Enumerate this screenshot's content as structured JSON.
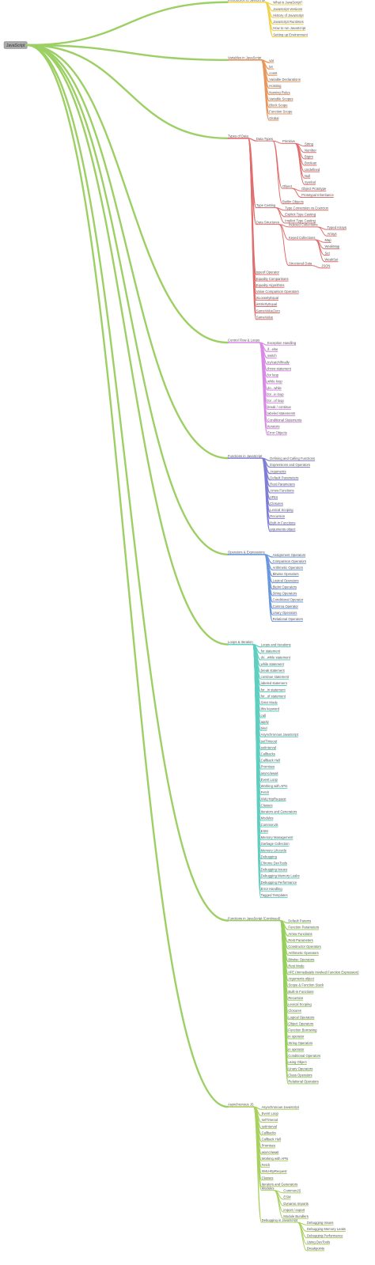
{
  "mindmap": {
    "label": "JavaScript",
    "children": [
      {
        "label": "Introduction to JavaScript",
        "color": "#f0d34a",
        "children": [
          {
            "label": "What is JavaScript?"
          },
          {
            "label": "JavaScript Versions"
          },
          {
            "label": "History of JavaScript"
          },
          {
            "label": "JavaScript Runtimes"
          },
          {
            "label": "How to run JavaScript"
          },
          {
            "label": "Setting up Environment"
          }
        ]
      },
      {
        "label": "Variables in JavaScript",
        "color": "#e9965c",
        "children": [
          {
            "label": "var"
          },
          {
            "label": "let"
          },
          {
            "label": "const"
          },
          {
            "label": "Variable Declarations"
          },
          {
            "label": "Hoisting"
          },
          {
            "label": "Naming Rules"
          },
          {
            "label": "Variable Scopes"
          },
          {
            "label": "Block Scope"
          },
          {
            "label": "Function Scope"
          },
          {
            "label": "Global"
          }
        ]
      },
      {
        "label": "Types of Data",
        "color": "#e06e6e",
        "children": [
          {
            "label": "Data Types",
            "children": [
              {
                "label": "Primitive",
                "children": [
                  {
                    "label": "String"
                  },
                  {
                    "label": "Number"
                  },
                  {
                    "label": "BigInt"
                  },
                  {
                    "label": "Boolean"
                  },
                  {
                    "label": "Undefined"
                  },
                  {
                    "label": "Null"
                  },
                  {
                    "label": "Symbol"
                  }
                ]
              },
              {
                "label": "Object",
                "children": [
                  {
                    "label": "Object Prototype"
                  },
                  {
                    "label": "Prototypal Inheritance"
                  }
                ]
              },
              {
                "label": "Builtin Objects"
              }
            ]
          },
          {
            "label": "Type Casting",
            "children": [
              {
                "label": "Type Conversion vs Coercion"
              },
              {
                "label": "Explicit Type Casting"
              },
              {
                "label": "Implicit Type Casting"
              }
            ]
          },
          {
            "label": "Data Structures",
            "children": [
              {
                "label": "Indexed Collections",
                "children": [
                  {
                    "label": "Typed Arrays"
                  },
                  {
                    "label": "Arrays"
                  }
                ]
              },
              {
                "label": "Keyed Collections",
                "children": [
                  {
                    "label": "Map"
                  },
                  {
                    "label": "WeakMap"
                  },
                  {
                    "label": "Set"
                  },
                  {
                    "label": "WeakSet"
                  }
                ]
              },
              {
                "label": "Structured Data",
                "children": [
                  {
                    "label": "JSON"
                  }
                ]
              }
            ]
          },
          {
            "label": "typeof Operator"
          },
          {
            "label": "Equality Comparisons"
          },
          {
            "label": "Equality Algorithms"
          },
          {
            "label": "Value Comparison Operators"
          },
          {
            "label": "isLooselyEqual"
          },
          {
            "label": "isStrictlyEqual"
          },
          {
            "label": "SameValueZero"
          },
          {
            "label": "SameValue"
          }
        ]
      },
      {
        "label": "Control Flow & Loops",
        "color": "#d98ae6",
        "children": [
          {
            "label": "Exception Handling"
          },
          {
            "label": "if...else"
          },
          {
            "label": "switch"
          },
          {
            "label": "try/catch/finally"
          },
          {
            "label": "throw statement"
          },
          {
            "label": "for loop"
          },
          {
            "label": "while loop"
          },
          {
            "label": "do...while"
          },
          {
            "label": "for...in loop"
          },
          {
            "label": "for...of loop"
          },
          {
            "label": "break / continue"
          },
          {
            "label": "labeled statements"
          },
          {
            "label": "Conditional Statements"
          },
          {
            "label": "Iterators"
          },
          {
            "label": "Error Objects"
          }
        ]
      },
      {
        "label": "Functions in JavaScript",
        "color": "#7f7ed6",
        "children": [
          {
            "label": "Defining and Calling Functions"
          },
          {
            "label": "Expressions and Operators"
          },
          {
            "label": "Arguments"
          },
          {
            "label": "Default Parameters"
          },
          {
            "label": "Rest Parameters"
          },
          {
            "label": "Arrow Functions"
          },
          {
            "label": "IIFEs"
          },
          {
            "label": "Closures"
          },
          {
            "label": "Lexical Scoping"
          },
          {
            "label": "Recursion"
          },
          {
            "label": "Built-in Functions"
          },
          {
            "label": "arguments object"
          }
        ]
      },
      {
        "label": "Operators & Expressions",
        "color": "#6b98de",
        "children": [
          {
            "label": "Assignment Operators"
          },
          {
            "label": "Comparison Operators"
          },
          {
            "label": "Arithmetic Operators"
          },
          {
            "label": "Bitwise Operators"
          },
          {
            "label": "Logical Operators"
          },
          {
            "label": "BigInt Operators"
          },
          {
            "label": "String Operators"
          },
          {
            "label": "Conditional Operator"
          },
          {
            "label": "Comma Operator"
          },
          {
            "label": "Unary Operators"
          },
          {
            "label": "Relational Operators"
          }
        ]
      },
      {
        "label": "Loops & Iteration",
        "color": "#5fcfc0",
        "children": [
          {
            "label": "Loops and Iterations"
          },
          {
            "label": "for statement"
          },
          {
            "label": "do...while statement"
          },
          {
            "label": "while statement"
          },
          {
            "label": "break statement"
          },
          {
            "label": "continue statement"
          },
          {
            "label": "labeled statement"
          },
          {
            "label": "for...in statement"
          },
          {
            "label": "for...of statement"
          },
          {
            "label": "Strict Mode"
          },
          {
            "label": "this keyword"
          },
          {
            "label": "call"
          },
          {
            "label": "apply"
          },
          {
            "label": "bind"
          },
          {
            "label": "Asynchronous JavaScript"
          },
          {
            "label": "setTimeout"
          },
          {
            "label": "setInterval"
          },
          {
            "label": "Callbacks"
          },
          {
            "label": "Callback Hell"
          },
          {
            "label": "Promises"
          },
          {
            "label": "async/await"
          },
          {
            "label": "Event Loop"
          },
          {
            "label": "Working with APIs"
          },
          {
            "label": "Fetch"
          },
          {
            "label": "XMLHttpRequest"
          },
          {
            "label": "Classes"
          },
          {
            "label": "Iterators and Generators"
          },
          {
            "label": "Modules"
          },
          {
            "label": "CommonJS"
          },
          {
            "label": "ESM"
          },
          {
            "label": "Memory Management"
          },
          {
            "label": "Garbage Collection"
          },
          {
            "label": "Memory Lifecycle"
          },
          {
            "label": "Debugging"
          },
          {
            "label": "Chrome DevTools"
          },
          {
            "label": "Debugging Issues"
          },
          {
            "label": "Debugging Memory Leaks"
          },
          {
            "label": "Debugging Performance"
          },
          {
            "label": "Error Handling"
          },
          {
            "label": "Tagged Templates"
          }
        ]
      },
      {
        "label": "Functions in JavaScript (Continued)",
        "color": "#97cf5f",
        "children": [
          {
            "label": "Default Params"
          },
          {
            "label": "Function Parameters"
          },
          {
            "label": "Arrow Functions"
          },
          {
            "label": "Rest Parameters"
          },
          {
            "label": "Constructor Operators"
          },
          {
            "label": "Arithmetic Operators"
          },
          {
            "label": "Bitwise Operators"
          },
          {
            "label": "Rest Mode"
          },
          {
            "label": "IIFE (Immediately Invoked Function Expression)"
          },
          {
            "label": "Arguments object"
          },
          {
            "label": "Scope & Function Stack"
          },
          {
            "label": "Built-in Functions"
          },
          {
            "label": "Recursion"
          },
          {
            "label": "Lexical Scoping"
          },
          {
            "label": "Closures"
          },
          {
            "label": "Logical Operators"
          },
          {
            "label": "Object Operators"
          },
          {
            "label": "Function Borrowing"
          },
          {
            "label": "in operator"
          },
          {
            "label": "String Operators"
          },
          {
            "label": "in operator"
          },
          {
            "label": "Conditional Operators"
          },
          {
            "label": "using Object"
          },
          {
            "label": "Unary Operators"
          },
          {
            "label": "Class Operators"
          },
          {
            "label": "Relational Operators"
          }
        ]
      },
      {
        "label": "Asynchronous JS",
        "color": "#a9d160",
        "children": [
          {
            "label": "Asynchronous JavaScript"
          },
          {
            "label": "Event Loop"
          },
          {
            "label": "setTimeout"
          },
          {
            "label": "setInterval"
          },
          {
            "label": "Callbacks"
          },
          {
            "label": "Callback Hell"
          },
          {
            "label": "Promises"
          },
          {
            "label": "async/await"
          },
          {
            "label": "Working with APIs"
          },
          {
            "label": "Fetch"
          },
          {
            "label": "XMLHttpRequest"
          },
          {
            "label": "Classes"
          },
          {
            "label": "Iterators and Generators"
          },
          {
            "label": "Modules",
            "children": [
              {
                "label": "CommonJS"
              },
              {
                "label": "ESM"
              },
              {
                "label": "Dynamic Imports"
              },
              {
                "label": "import / export"
              },
              {
                "label": "Module Bundlers"
              }
            ]
          },
          {
            "label": "Debugging in JavaScript",
            "children": [
              {
                "label": "Debugging Issues"
              },
              {
                "label": "Debugging Memory Leaks"
              },
              {
                "label": "Debugging Performance"
              },
              {
                "label": "Using DevTools"
              },
              {
                "label": "Breakpoints"
              }
            ]
          }
        ]
      }
    ]
  }
}
